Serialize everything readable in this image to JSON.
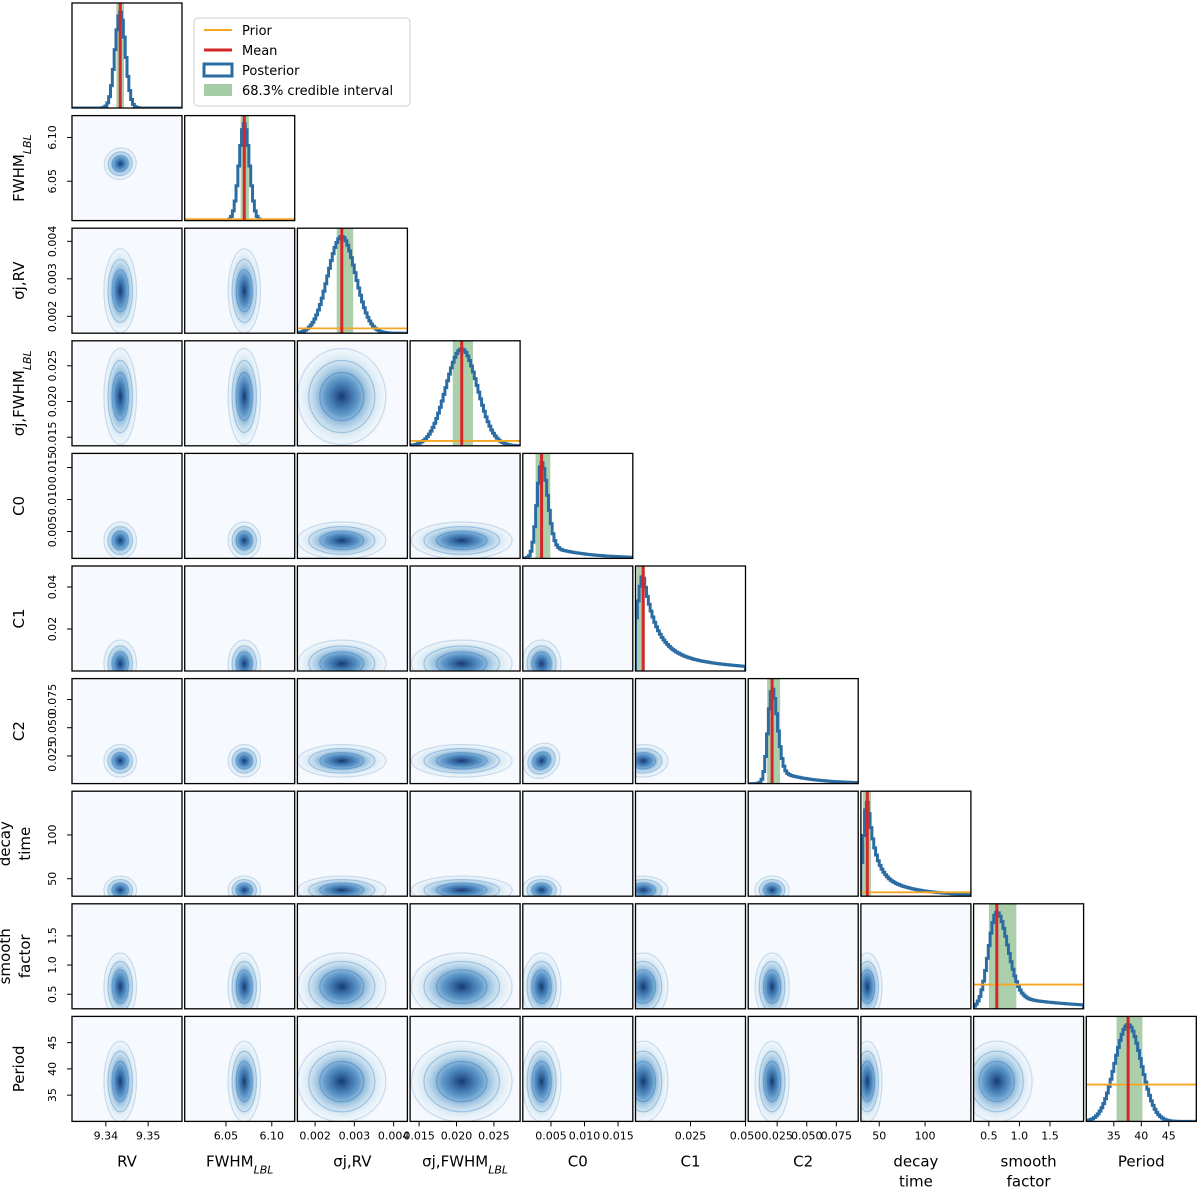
{
  "chart_data": {
    "type": "corner",
    "title": "",
    "colors": {
      "prior": "#f5a623",
      "mean": "#d62728",
      "posterior": "#2b6ca3",
      "credible": "#8fbf8f",
      "density": "#1f77b4"
    },
    "legend": {
      "placement": "top-center",
      "entries": [
        {
          "label": "Prior",
          "kind": "line",
          "color_key": "prior"
        },
        {
          "label": "Mean",
          "kind": "line",
          "color_key": "mean"
        },
        {
          "label": "Posterior",
          "kind": "step",
          "color_key": "posterior"
        },
        {
          "label": "68.3% credible interval",
          "kind": "patch",
          "color_key": "credible"
        }
      ]
    },
    "parameters": [
      {
        "key": "rv",
        "label": "RV",
        "label_sub": "",
        "label_lines": [
          "RV"
        ],
        "range": [
          9.332,
          9.358
        ],
        "ticks": [
          {
            "v": 9.34,
            "t": "9.34"
          },
          {
            "v": 9.35,
            "t": "9.35"
          }
        ],
        "mean": 9.3434,
        "ci": [
          9.3425,
          9.3443
        ],
        "sd": 0.0012,
        "skew": 0,
        "prior": null
      },
      {
        "key": "fwhm",
        "label": "FWHM",
        "label_sub": "LBL",
        "label_lines": [
          "FWHM_LBL"
        ],
        "range": [
          6.005,
          6.125
        ],
        "ticks": [
          {
            "v": 6.05,
            "t": "6.05"
          },
          {
            "v": 6.1,
            "t": "6.10"
          }
        ],
        "mean": 6.07,
        "ci": [
          6.066,
          6.075
        ],
        "sd": 0.0055,
        "skew": 0,
        "prior": 0.015
      },
      {
        "key": "sjrv",
        "label": "σj,RV",
        "label_sub": "",
        "label_lines": [
          "σj,RV"
        ],
        "range": [
          0.00155,
          0.00435
        ],
        "ticks": [
          {
            "v": 0.002,
            "t": "0.002"
          },
          {
            "v": 0.003,
            "t": "0.003"
          },
          {
            "v": 0.004,
            "t": "0.004"
          }
        ],
        "mean": 0.00268,
        "ci": [
          0.00255,
          0.00297
        ],
        "sd": 0.00035,
        "skew": 0,
        "prior": 0.05
      },
      {
        "key": "sjfwhm",
        "label": "σj,FWHM",
        "label_sub": "LBL",
        "label_lines": [
          "σj,FWHM_LBL"
        ],
        "range": [
          0.0138,
          0.0285
        ],
        "ticks": [
          {
            "v": 0.015,
            "t": "0.015"
          },
          {
            "v": 0.02,
            "t": "0.020"
          },
          {
            "v": 0.025,
            "t": "0.025"
          }
        ],
        "mean": 0.0207,
        "ci": [
          0.0195,
          0.0222
        ],
        "sd": 0.0021,
        "skew": 0,
        "prior": 0.05
      },
      {
        "key": "c0",
        "label": "C0",
        "label_sub": "",
        "label_lines": [
          "C0"
        ],
        "range": [
          0.0008,
          0.0172
        ],
        "ticks": [
          {
            "v": 0.005,
            "t": "0.005"
          },
          {
            "v": 0.01,
            "t": "0.010"
          },
          {
            "v": 0.015,
            "t": "0.015"
          }
        ],
        "mean": 0.0036,
        "ci": [
          0.0027,
          0.0049
        ],
        "sd": 0.0009,
        "skew": 1,
        "prior": null
      },
      {
        "key": "c1",
        "label": "C1",
        "label_sub": "",
        "label_lines": [
          "C1"
        ],
        "range": [
          0.0,
          0.05
        ],
        "ticks": [
          {
            "v": 0.025,
            "t": "0.025"
          },
          {
            "v": 0.05,
            "t": "0.050"
          }
        ],
        "ticks_y": [
          {
            "v": 0.02,
            "t": "0.02"
          },
          {
            "v": 0.04,
            "t": "0.04"
          }
        ],
        "mean": 0.0035,
        "ci": [
          0.0005,
          0.0042
        ],
        "sd": 0.0035,
        "skew": 2,
        "prior": null
      },
      {
        "key": "c2",
        "label": "C2",
        "label_sub": "",
        "label_lines": [
          "C2"
        ],
        "range": [
          0.0005,
          0.0935
        ],
        "ticks": [
          {
            "v": 0.025,
            "t": "0.025"
          },
          {
            "v": 0.05,
            "t": "0.050"
          },
          {
            "v": 0.075,
            "t": "0.075"
          }
        ],
        "mean": 0.0207,
        "ci": [
          0.0165,
          0.0275
        ],
        "sd": 0.0045,
        "skew": 1,
        "prior": null
      },
      {
        "key": "decay",
        "label": "decay time",
        "label_sub": "",
        "label_lines": [
          "decay",
          "time"
        ],
        "range": [
          30,
          150
        ],
        "ticks": [
          {
            "v": 50,
            "t": "50"
          },
          {
            "v": 100,
            "t": "100"
          }
        ],
        "mean": 37,
        "ci": [
          32,
          41
        ],
        "sd": 5,
        "skew": 2,
        "prior": 0.04
      },
      {
        "key": "smooth",
        "label": "smooth factor",
        "label_sub": "",
        "label_lines": [
          "smooth",
          "factor"
        ],
        "range": [
          0.25,
          2.05
        ],
        "ticks": [
          {
            "v": 0.5,
            "t": "0.5"
          },
          {
            "v": 1.0,
            "t": "1.0"
          },
          {
            "v": 1.5,
            "t": "1.5"
          }
        ],
        "mean": 0.63,
        "ci": [
          0.5,
          0.95
        ],
        "sd": 0.18,
        "skew": 1,
        "prior": 0.25
      },
      {
        "key": "period",
        "label": "Period",
        "label_sub": "",
        "label_lines": [
          "Period"
        ],
        "range": [
          30,
          50
        ],
        "ticks": [
          {
            "v": 35,
            "t": "35"
          },
          {
            "v": 40,
            "t": "40"
          },
          {
            "v": 45,
            "t": "45"
          }
        ],
        "mean": 37.6,
        "ci": [
          35.5,
          40.2
        ],
        "sd": 2.4,
        "skew": 0,
        "prior": 0.38
      }
    ]
  }
}
